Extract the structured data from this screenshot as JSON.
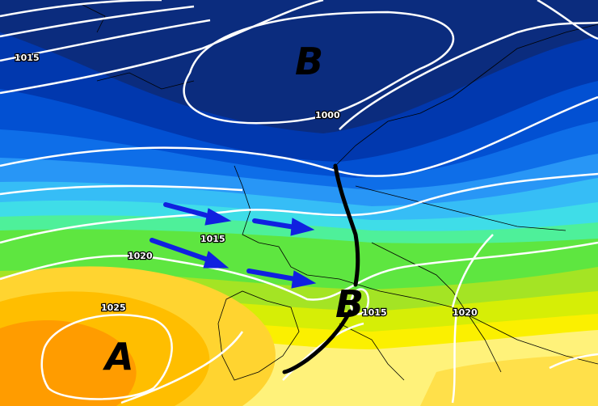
{
  "map": {
    "pressure_centers": [
      {
        "type": "low",
        "letter": "B"
      },
      {
        "type": "low",
        "letter": "B"
      },
      {
        "type": "high",
        "letter": "A"
      }
    ],
    "isobar_labels": [
      "1015",
      "1000",
      "1015",
      "1020",
      "1025",
      "1015",
      "1020"
    ],
    "colors": {
      "isobar": "#ffffff",
      "front": "#000000",
      "wind_arrow": "#1020e0",
      "low_pressure": "#0a2a7a",
      "high_pressure": "#ff9000"
    }
  }
}
